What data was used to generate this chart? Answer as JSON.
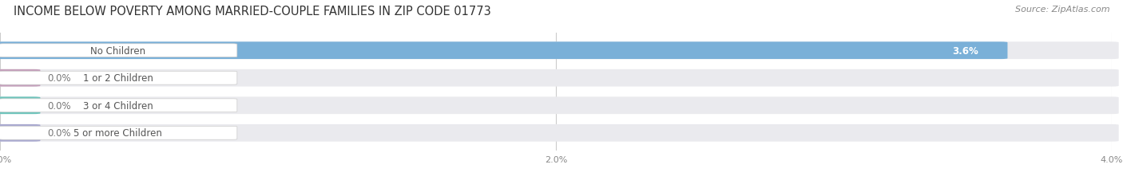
{
  "title": "INCOME BELOW POVERTY AMONG MARRIED-COUPLE FAMILIES IN ZIP CODE 01773",
  "source": "Source: ZipAtlas.com",
  "categories": [
    "No Children",
    "1 or 2 Children",
    "3 or 4 Children",
    "5 or more Children"
  ],
  "values": [
    3.6,
    0.0,
    0.0,
    0.0
  ],
  "bar_colors": [
    "#7ab0d8",
    "#c4a0bb",
    "#6ec4bb",
    "#aaaad0"
  ],
  "bar_bg_color": "#eaeaee",
  "xlim_max": 4.0,
  "xticks": [
    0.0,
    2.0,
    4.0
  ],
  "xtick_labels": [
    "0.0%",
    "2.0%",
    "4.0%"
  ],
  "title_fontsize": 10.5,
  "source_fontsize": 8,
  "label_fontsize": 8.5,
  "value_fontsize": 8.5,
  "bar_height": 0.58,
  "background_color": "#ffffff",
  "label_text_color": "#555555",
  "value_label_color_on_bar": "#ffffff",
  "value_label_color_off_bar": "#777777"
}
